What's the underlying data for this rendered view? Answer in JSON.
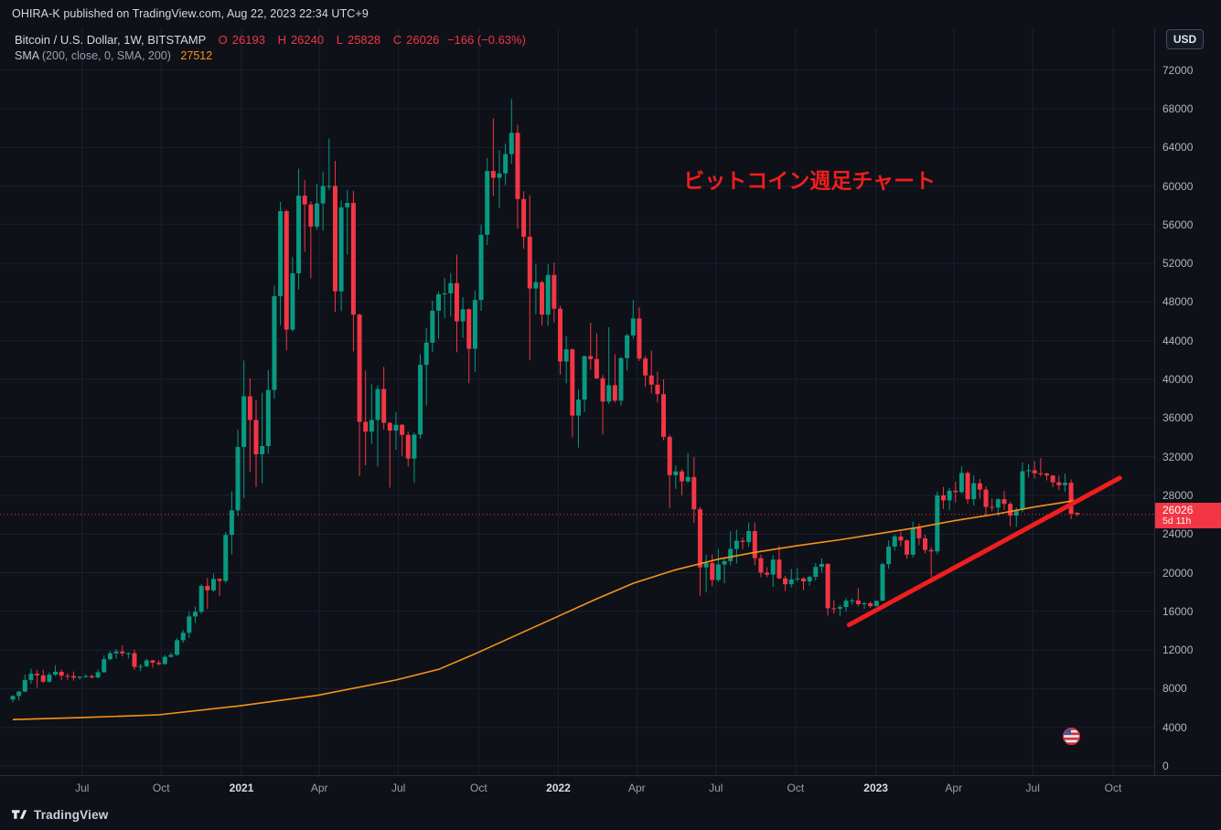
{
  "publish_bar": {
    "text": "OHIRA-K published on TradingView.com, Aug 22, 2023 22:34 UTC+9"
  },
  "currency_button": {
    "label": "USD"
  },
  "legend": {
    "symbol": "Bitcoin / U.S. Dollar, 1W, BITSTAMP",
    "o_label": "O",
    "o": "26193",
    "h_label": "H",
    "h": "26240",
    "l_label": "L",
    "l": "25828",
    "c_label": "C",
    "c": "26026",
    "change": "−166 (−0.63%)",
    "sma_title": "SMA",
    "sma_params": "(200, close, 0, SMA, 200)",
    "sma_value": "27512"
  },
  "price_label": {
    "price": "26026",
    "countdown": "5d 11h"
  },
  "footer": {
    "brand": "TradingView"
  },
  "colors": {
    "background": "#0e1118",
    "grid": "#1b2130",
    "up": "#089981",
    "down": "#f23645",
    "sma": "#f7931a",
    "drawing": "#f01e1e",
    "axis_text": "#b2b5be"
  },
  "chart_data": {
    "type": "candlestick",
    "title": "Bitcoin / U.S. Dollar, 1W, BITSTAMP",
    "xlabel": "",
    "ylabel": "USD",
    "ylim": [
      0,
      74000
    ],
    "grid": true,
    "timeframe": "1W",
    "start_week": "2020-04-13",
    "end_week": "2023-08-21",
    "current_price_line": 26026,
    "y_ticks": [
      0,
      4000,
      8000,
      12000,
      16000,
      20000,
      24000,
      28000,
      32000,
      36000,
      40000,
      44000,
      48000,
      52000,
      56000,
      60000,
      64000,
      68000,
      72000
    ],
    "x_ticks": [
      {
        "label": "Jul",
        "index": 11.4,
        "year": false
      },
      {
        "label": "Oct",
        "index": 24.4,
        "year": false
      },
      {
        "label": "2021",
        "index": 37.6,
        "year": true
      },
      {
        "label": "Apr",
        "index": 50.4,
        "year": false
      },
      {
        "label": "Jul",
        "index": 63.4,
        "year": false
      },
      {
        "label": "Oct",
        "index": 76.6,
        "year": false
      },
      {
        "label": "2022",
        "index": 89.7,
        "year": true
      },
      {
        "label": "Apr",
        "index": 102.6,
        "year": false
      },
      {
        "label": "Jul",
        "index": 115.6,
        "year": false
      },
      {
        "label": "Oct",
        "index": 128.7,
        "year": false
      },
      {
        "label": "2023",
        "index": 141.9,
        "year": true
      },
      {
        "label": "Apr",
        "index": 154.7,
        "year": false
      },
      {
        "label": "Jul",
        "index": 167.7,
        "year": false
      },
      {
        "label": "Oct",
        "index": 180.9,
        "year": false
      }
    ],
    "weeks": [
      [
        6880,
        7300,
        6560,
        7250
      ],
      [
        7250,
        7780,
        6790,
        7700
      ],
      [
        7700,
        9460,
        7630,
        8900
      ],
      [
        8900,
        10070,
        8520,
        9550
      ],
      [
        9550,
        9940,
        8100,
        9380
      ],
      [
        9380,
        9950,
        8600,
        8720
      ],
      [
        8720,
        9680,
        8640,
        9450
      ],
      [
        9450,
        10430,
        9320,
        9750
      ],
      [
        9750,
        9990,
        8900,
        9340
      ],
      [
        9340,
        9590,
        8910,
        9300
      ],
      [
        9300,
        9780,
        8830,
        9135
      ],
      [
        9135,
        9290,
        8940,
        9240
      ],
      [
        9240,
        9480,
        9110,
        9300
      ],
      [
        9300,
        9450,
        9050,
        9160
      ],
      [
        9160,
        9990,
        9100,
        9700
      ],
      [
        9700,
        11450,
        9650,
        11050
      ],
      [
        11050,
        11900,
        10940,
        11660
      ],
      [
        11660,
        12090,
        11100,
        11850
      ],
      [
        11850,
        12480,
        11350,
        11650
      ],
      [
        11650,
        11780,
        11130,
        11680
      ],
      [
        11680,
        12050,
        9960,
        10250
      ],
      [
        10250,
        10580,
        9820,
        10330
      ],
      [
        10330,
        11100,
        10220,
        10930
      ],
      [
        10930,
        10990,
        10150,
        10690
      ],
      [
        10690,
        10950,
        10370,
        10550
      ],
      [
        10550,
        11490,
        10490,
        11290
      ],
      [
        11290,
        11730,
        11220,
        11500
      ],
      [
        11500,
        13240,
        11400,
        13010
      ],
      [
        13010,
        14080,
        12750,
        13780
      ],
      [
        13780,
        15950,
        13250,
        15470
      ],
      [
        15470,
        16480,
        14800,
        15950
      ],
      [
        15950,
        18800,
        15750,
        18640
      ],
      [
        18640,
        19450,
        16250,
        18170
      ],
      [
        18170,
        19900,
        18000,
        19350
      ],
      [
        19350,
        19420,
        17600,
        19150
      ],
      [
        19150,
        24200,
        18900,
        23900
      ],
      [
        23900,
        28400,
        21900,
        26450
      ],
      [
        26450,
        34800,
        25850,
        33000
      ],
      [
        33000,
        41950,
        27700,
        38250
      ],
      [
        38250,
        40100,
        30400,
        35800
      ],
      [
        35800,
        37850,
        28850,
        32250
      ],
      [
        32250,
        38600,
        29250,
        33100
      ],
      [
        33100,
        40950,
        32300,
        38900
      ],
      [
        38900,
        49700,
        38000,
        48600
      ],
      [
        48600,
        58350,
        45600,
        57400
      ],
      [
        57400,
        57550,
        43000,
        45140
      ],
      [
        45140,
        52650,
        44950,
        50970
      ],
      [
        50970,
        61800,
        49300,
        59000
      ],
      [
        59000,
        60600,
        53200,
        58100
      ],
      [
        58100,
        58400,
        50450,
        55800
      ],
      [
        55800,
        60200,
        55450,
        58200
      ],
      [
        58200,
        61500,
        55400,
        60000
      ],
      [
        60000,
        64900,
        59600,
        60000
      ],
      [
        60000,
        62600,
        47000,
        49100
      ],
      [
        49100,
        58500,
        47050,
        57800
      ],
      [
        57800,
        59600,
        52900,
        58250
      ],
      [
        58250,
        59500,
        42900,
        46700
      ],
      [
        46700,
        46800,
        30000,
        35600
      ],
      [
        35600,
        40900,
        31100,
        34600
      ],
      [
        34600,
        39500,
        33300,
        35800
      ],
      [
        35800,
        39380,
        31000,
        39000
      ],
      [
        39000,
        41300,
        34800,
        35500
      ],
      [
        35500,
        35600,
        28800,
        34700
      ],
      [
        34700,
        36600,
        32700,
        35300
      ],
      [
        35300,
        35400,
        32100,
        34250
      ],
      [
        34250,
        34600,
        31000,
        31800
      ],
      [
        31800,
        34500,
        29300,
        34290
      ],
      [
        34290,
        42600,
        33850,
        41500
      ],
      [
        41500,
        45300,
        37300,
        43800
      ],
      [
        43800,
        48150,
        42800,
        47100
      ],
      [
        47100,
        49050,
        44200,
        48800
      ],
      [
        48800,
        50500,
        46350,
        48900
      ],
      [
        48900,
        51000,
        46500,
        49950
      ],
      [
        49950,
        52900,
        42800,
        46000
      ],
      [
        46000,
        48500,
        44300,
        47250
      ],
      [
        47250,
        47350,
        39600,
        43160
      ],
      [
        43160,
        49200,
        40750,
        48200
      ],
      [
        48200,
        56000,
        47100,
        54950
      ],
      [
        54950,
        62900,
        53900,
        61550
      ],
      [
        61550,
        67000,
        58950,
        60850
      ],
      [
        60850,
        63700,
        57700,
        61300
      ],
      [
        61300,
        64400,
        60100,
        63300
      ],
      [
        63300,
        69000,
        62300,
        65500
      ],
      [
        65500,
        66350,
        55600,
        58650
      ],
      [
        58650,
        59450,
        53500,
        54750
      ],
      [
        54750,
        59050,
        42000,
        49400
      ],
      [
        49400,
        51900,
        46750,
        50050
      ],
      [
        50050,
        50200,
        45550,
        46700
      ],
      [
        46700,
        51900,
        45550,
        50800
      ],
      [
        50800,
        52100,
        45900,
        47300
      ],
      [
        47300,
        47600,
        40500,
        41850
      ],
      [
        41850,
        44500,
        39600,
        43100
      ],
      [
        43100,
        43200,
        34000,
        36250
      ],
      [
        36250,
        38950,
        32950,
        37900
      ],
      [
        37900,
        42450,
        36650,
        42400
      ],
      [
        42400,
        45850,
        41000,
        42100
      ],
      [
        42100,
        44750,
        40050,
        40100
      ],
      [
        40100,
        40450,
        34300,
        37700
      ],
      [
        37700,
        45400,
        37450,
        39400
      ],
      [
        39400,
        42600,
        37600,
        37800
      ],
      [
        37800,
        42300,
        37300,
        42200
      ],
      [
        42200,
        44750,
        40900,
        44540
      ],
      [
        44540,
        48200,
        44200,
        46300
      ],
      [
        46300,
        47450,
        41900,
        42150
      ],
      [
        42150,
        42420,
        39200,
        40400
      ],
      [
        40400,
        42970,
        38550,
        39450
      ],
      [
        39450,
        40800,
        37600,
        38470
      ],
      [
        38470,
        40000,
        33700,
        34050
      ],
      [
        34050,
        34250,
        26700,
        30080
      ],
      [
        30080,
        31100,
        28650,
        30480
      ],
      [
        30480,
        30700,
        28000,
        29450
      ],
      [
        29450,
        32400,
        29300,
        29900
      ],
      [
        29900,
        31950,
        25150,
        26560
      ],
      [
        26560,
        26800,
        17600,
        20550
      ],
      [
        20550,
        21850,
        17950,
        21000
      ],
      [
        21000,
        21900,
        18600,
        19250
      ],
      [
        19250,
        22450,
        19050,
        20850
      ],
      [
        20850,
        21600,
        18900,
        21200
      ],
      [
        21200,
        24280,
        20750,
        22450
      ],
      [
        22450,
        24450,
        20950,
        23300
      ],
      [
        23300,
        23650,
        22400,
        23180
      ],
      [
        23180,
        25200,
        22660,
        24300
      ],
      [
        24300,
        25200,
        20780,
        21500
      ],
      [
        21500,
        21850,
        19520,
        20000
      ],
      [
        20000,
        20550,
        19550,
        19800
      ],
      [
        19800,
        21800,
        18510,
        21350
      ],
      [
        21350,
        22800,
        19320,
        19420
      ],
      [
        19420,
        19690,
        18100,
        18800
      ],
      [
        18800,
        20380,
        18470,
        19300
      ],
      [
        19300,
        20480,
        19050,
        19400
      ],
      [
        19400,
        19520,
        18190,
        19100
      ],
      [
        19100,
        19700,
        18650,
        19570
      ],
      [
        19570,
        21000,
        19180,
        20600
      ],
      [
        20600,
        21480,
        20000,
        20900
      ],
      [
        20900,
        21000,
        15550,
        16320
      ],
      [
        16320,
        17150,
        15750,
        16270
      ],
      [
        16270,
        16700,
        15480,
        16450
      ],
      [
        16450,
        17400,
        16000,
        17100
      ],
      [
        17100,
        17350,
        16700,
        17130
      ],
      [
        17130,
        18400,
        16530,
        16740
      ],
      [
        16740,
        16950,
        16280,
        16840
      ],
      [
        16840,
        16990,
        16350,
        16540
      ],
      [
        16540,
        17040,
        16490,
        17090
      ],
      [
        17090,
        21050,
        17080,
        20880
      ],
      [
        20880,
        23350,
        20400,
        22700
      ],
      [
        22700,
        23950,
        22300,
        23750
      ],
      [
        23750,
        24250,
        22750,
        23330
      ],
      [
        23330,
        23450,
        21450,
        21860
      ],
      [
        21860,
        25250,
        21550,
        24630
      ],
      [
        24630,
        25100,
        22850,
        23560
      ],
      [
        23560,
        23920,
        22000,
        22350
      ],
      [
        22350,
        22650,
        19550,
        22200
      ],
      [
        22200,
        28390,
        21900,
        28000
      ],
      [
        28000,
        28870,
        26600,
        27480
      ],
      [
        27480,
        28750,
        26500,
        28480
      ],
      [
        28480,
        29400,
        27250,
        28340
      ],
      [
        28340,
        31000,
        28170,
        30320
      ],
      [
        30320,
        30500,
        27150,
        27600
      ],
      [
        27600,
        30050,
        26950,
        29250
      ],
      [
        29250,
        29700,
        27650,
        28600
      ],
      [
        28600,
        28950,
        25800,
        26800
      ],
      [
        26800,
        27700,
        26350,
        26740
      ],
      [
        26740,
        27680,
        25850,
        27600
      ],
      [
        27600,
        28450,
        26480,
        27120
      ],
      [
        27120,
        27350,
        24800,
        25900
      ],
      [
        25900,
        26750,
        24750,
        26500
      ],
      [
        26500,
        31400,
        26250,
        30500
      ],
      [
        30500,
        31250,
        29850,
        30600
      ],
      [
        30600,
        31550,
        29750,
        30280
      ],
      [
        30280,
        31850,
        29950,
        30250
      ],
      [
        30250,
        30350,
        29550,
        30050
      ],
      [
        30050,
        30100,
        28850,
        29350
      ],
      [
        29350,
        30050,
        28550,
        29050
      ],
      [
        29050,
        30250,
        28350,
        29300
      ],
      [
        29300,
        29650,
        25550,
        26100
      ],
      [
        26193,
        26240,
        25828,
        26026
      ]
    ],
    "sma200": {
      "name": "SMA 200",
      "current_value": 27512,
      "anchors": [
        [
          0,
          4800
        ],
        [
          11,
          5000
        ],
        [
          24,
          5300
        ],
        [
          37,
          6200
        ],
        [
          50,
          7300
        ],
        [
          63,
          8900
        ],
        [
          70,
          10000
        ],
        [
          76,
          11600
        ],
        [
          83,
          13600
        ],
        [
          89,
          15300
        ],
        [
          96,
          17300
        ],
        [
          102,
          18900
        ],
        [
          109,
          20300
        ],
        [
          116,
          21400
        ],
        [
          122,
          22100
        ],
        [
          129,
          22800
        ],
        [
          136,
          23400
        ],
        [
          142,
          24000
        ],
        [
          149,
          24700
        ],
        [
          155,
          25400
        ],
        [
          162,
          26100
        ],
        [
          168,
          26800
        ],
        [
          172,
          27200
        ],
        [
          175,
          27512
        ]
      ]
    },
    "trendline": {
      "start": {
        "index": 137.5,
        "price": 14600
      },
      "end": {
        "index": 182,
        "price": 29800
      },
      "width": 5
    },
    "annotation": {
      "text": "ビットコイン週足チャート",
      "index": 131,
      "price": 59800
    }
  }
}
